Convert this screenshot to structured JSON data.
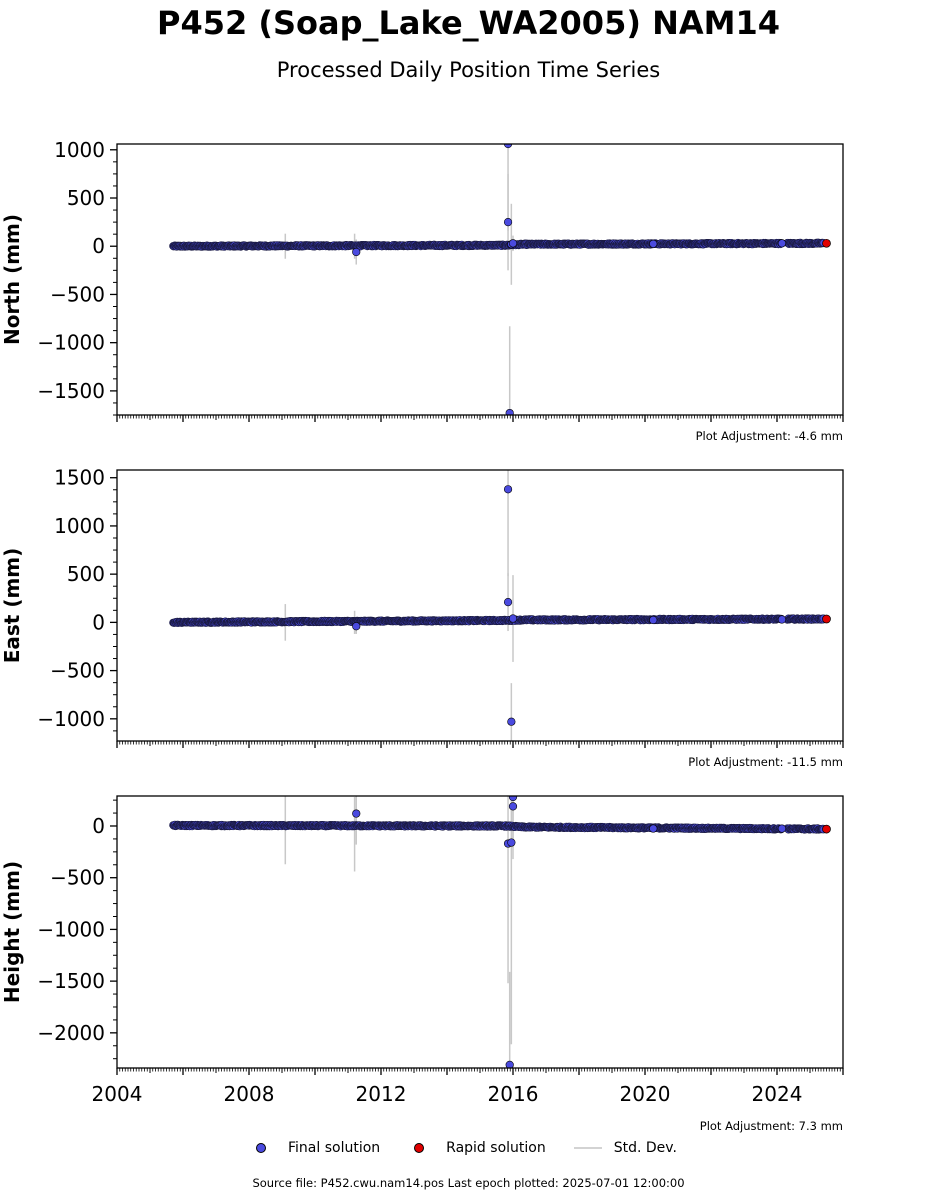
{
  "title": "P452 (Soap_Lake_WA2005) NAM14",
  "subtitle": "Processed Daily Position Time Series",
  "footer": "Source file: P452.cwu.nam14.pos  Last epoch plotted: 2025-07-01 12:00:00",
  "legend": {
    "final": "Final solution",
    "rapid": "Rapid solution",
    "stddev": "Std. Dev."
  },
  "colors": {
    "final": "#4a4adf",
    "rapid": "#e00000",
    "stddev": "#c8c8c8",
    "marker_edge": "#000000"
  },
  "chart_data": [
    {
      "type": "scatter",
      "ylabel": "North (mm)",
      "adjustment": "Plot Adjustment: -4.6 mm",
      "xlim": [
        2004,
        2026
      ],
      "ylim": [
        -1750,
        1060
      ],
      "yticks": [
        -1500,
        -1000,
        -500,
        0,
        500,
        1000
      ],
      "trend": [
        [
          2005.7,
          0
        ],
        [
          2015.8,
          10
        ],
        [
          2016.3,
          20
        ],
        [
          2025.5,
          30
        ]
      ],
      "gaps": [
        [
          2024.15,
          2024.3
        ]
      ],
      "outliers": [
        {
          "x": 2011.25,
          "y": -60,
          "sd": 130
        },
        {
          "x": 2015.85,
          "y": 1060,
          "sd": 900
        },
        {
          "x": 2015.85,
          "y": 250,
          "sd": 500
        },
        {
          "x": 2015.9,
          "y": -1730,
          "sd": 900
        },
        {
          "x": 2015.95,
          "y": 20,
          "sd": 420
        },
        {
          "x": 2016.0,
          "y": 30,
          "sd": 80
        },
        {
          "x": 2020.25,
          "y": 25,
          "sd": 20
        },
        {
          "x": 2024.15,
          "y": 30,
          "sd": 20
        }
      ],
      "stddev_bars": [
        {
          "x": 2009.1,
          "y": 0,
          "sd": 130
        },
        {
          "x": 2011.2,
          "y": 0,
          "sd": 130
        }
      ],
      "rapid": {
        "x": 2025.5,
        "y": 30
      }
    },
    {
      "type": "scatter",
      "ylabel": "East (mm)",
      "adjustment": "Plot Adjustment: -11.5 mm",
      "xlim": [
        2004,
        2026
      ],
      "ylim": [
        -1230,
        1580
      ],
      "yticks": [
        -1000,
        -500,
        0,
        500,
        1000,
        1500
      ],
      "trend": [
        [
          2005.7,
          0
        ],
        [
          2015.8,
          20
        ],
        [
          2016.3,
          25
        ],
        [
          2025.5,
          35
        ]
      ],
      "gaps": [
        [
          2024.15,
          2024.3
        ]
      ],
      "outliers": [
        {
          "x": 2011.25,
          "y": -40,
          "sd": 80
        },
        {
          "x": 2015.85,
          "y": 1380,
          "sd": 900
        },
        {
          "x": 2015.85,
          "y": 210,
          "sd": 300
        },
        {
          "x": 2015.95,
          "y": -1030,
          "sd": 400
        },
        {
          "x": 2016.0,
          "y": 40,
          "sd": 450
        },
        {
          "x": 2020.25,
          "y": 25,
          "sd": 20
        },
        {
          "x": 2024.15,
          "y": 30,
          "sd": 20
        }
      ],
      "stddev_bars": [
        {
          "x": 2009.1,
          "y": 0,
          "sd": 190
        },
        {
          "x": 2011.2,
          "y": 0,
          "sd": 120
        }
      ],
      "rapid": {
        "x": 2025.5,
        "y": 35
      }
    },
    {
      "type": "scatter",
      "ylabel": "Height (mm)",
      "adjustment": "Plot Adjustment: 7.3 mm",
      "xticks": [
        2004,
        2008,
        2012,
        2016,
        2020,
        2024
      ],
      "xlim": [
        2004,
        2026
      ],
      "ylim": [
        -2340,
        290
      ],
      "yticks": [
        -2000,
        -1500,
        -1000,
        -500,
        0
      ],
      "trend": [
        [
          2005.7,
          5
        ],
        [
          2015.8,
          0
        ],
        [
          2016.3,
          -10
        ],
        [
          2025.5,
          -30
        ]
      ],
      "gaps": [
        [
          2024.15,
          2024.3
        ]
      ],
      "outliers": [
        {
          "x": 2011.25,
          "y": 120,
          "sd": 300
        },
        {
          "x": 2015.85,
          "y": -170,
          "sd": 1350
        },
        {
          "x": 2015.9,
          "y": -2310,
          "sd": 900
        },
        {
          "x": 2016.0,
          "y": 280,
          "sd": 600
        },
        {
          "x": 2016.0,
          "y": 190,
          "sd": 400
        },
        {
          "x": 2015.95,
          "y": -160,
          "sd": 1950
        },
        {
          "x": 2020.25,
          "y": -25,
          "sd": 20
        },
        {
          "x": 2024.15,
          "y": -25,
          "sd": 20
        }
      ],
      "stddev_bars": [
        {
          "x": 2009.1,
          "y": -40,
          "sd": 330
        },
        {
          "x": 2011.2,
          "y": -80,
          "sd": 360
        }
      ],
      "rapid": {
        "x": 2025.5,
        "y": -30
      }
    }
  ]
}
